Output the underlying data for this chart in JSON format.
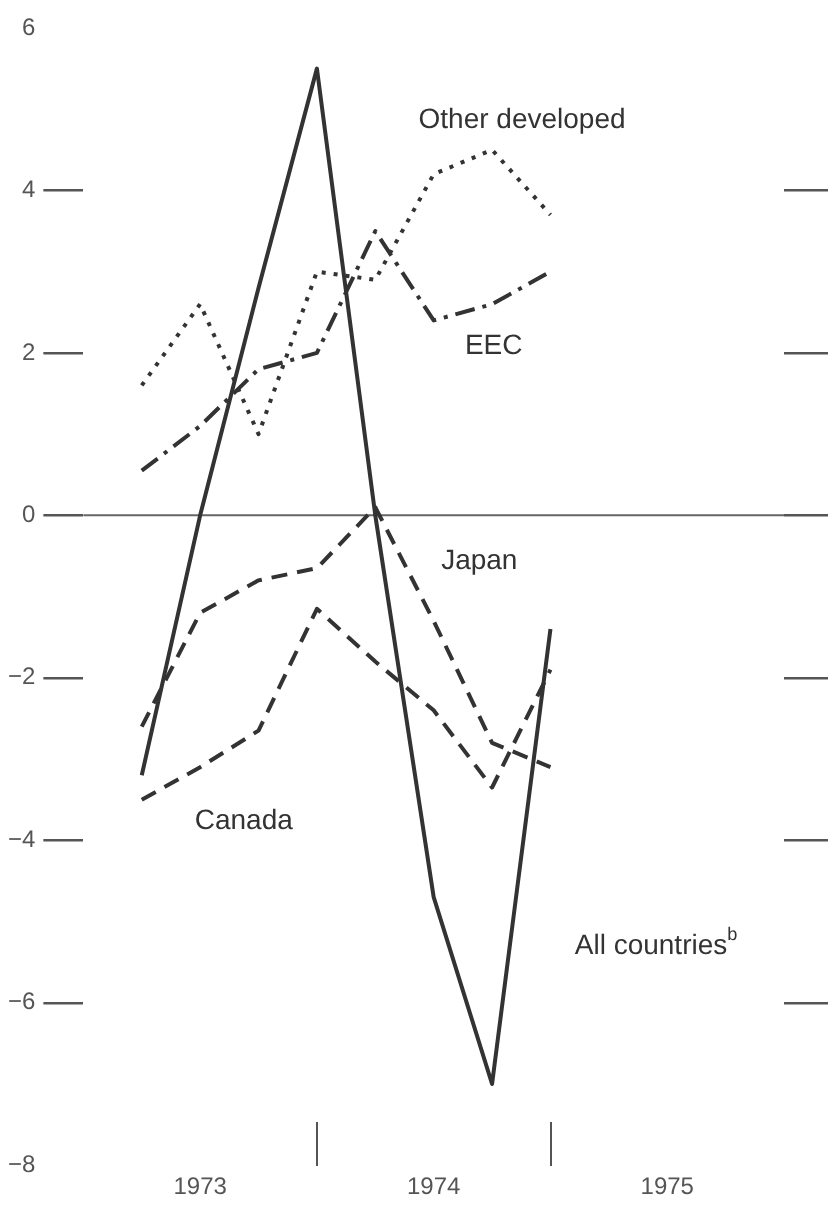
{
  "chart_data": {
    "type": "line",
    "x": [
      1973.25,
      1973.5,
      1973.75,
      1974.0,
      1974.25,
      1974.5,
      1974.75,
      1975.0
    ],
    "series": [
      {
        "name": "All countries$^{b}$",
        "color": "#333333",
        "line_style": "solid",
        "values": [
          -3.2,
          0.0,
          2.8,
          5.5,
          0.0,
          -4.7,
          -7.0,
          -1.4
        ]
      },
      {
        "name": "Other developed",
        "color": "#333333",
        "line_style": "dotted",
        "values": [
          1.6,
          2.6,
          1.0,
          3.0,
          2.9,
          4.2,
          4.5,
          3.7
        ]
      },
      {
        "name": "EEC",
        "color": "#333333",
        "line_style": "dashdot",
        "values": [
          0.55,
          1.1,
          1.8,
          2.0,
          3.5,
          2.4,
          2.6,
          3.0
        ]
      },
      {
        "name": "Japan",
        "color": "#333333",
        "line_style": "dashed",
        "values": [
          -2.6,
          -1.2,
          -0.8,
          -0.65,
          0.1,
          -1.3,
          -2.8,
          -3.1
        ]
      },
      {
        "name": "Canada",
        "color": "#333333",
        "line_style": "dashed",
        "values": [
          -3.5,
          -3.1,
          -2.65,
          -1.15,
          -1.8,
          -2.4,
          -3.35,
          -1.9
        ]
      }
    ],
    "xlim": [
      1973,
      1976
    ],
    "xticks": [
      {
        "value": 1973.5,
        "label": "1973"
      },
      {
        "value": 1974.5,
        "label": "1974"
      },
      {
        "value": 1975.5,
        "label": "1975"
      }
    ],
    "ylim": [
      -8,
      6
    ],
    "yticks": [
      -8,
      -6,
      -4,
      -2,
      0,
      2,
      4,
      6
    ],
    "ref_lines": [
      {
        "axis": "y",
        "value": 0,
        "color": "#666666"
      }
    ],
    "grid": false,
    "legend": false,
    "marker": "none"
  }
}
